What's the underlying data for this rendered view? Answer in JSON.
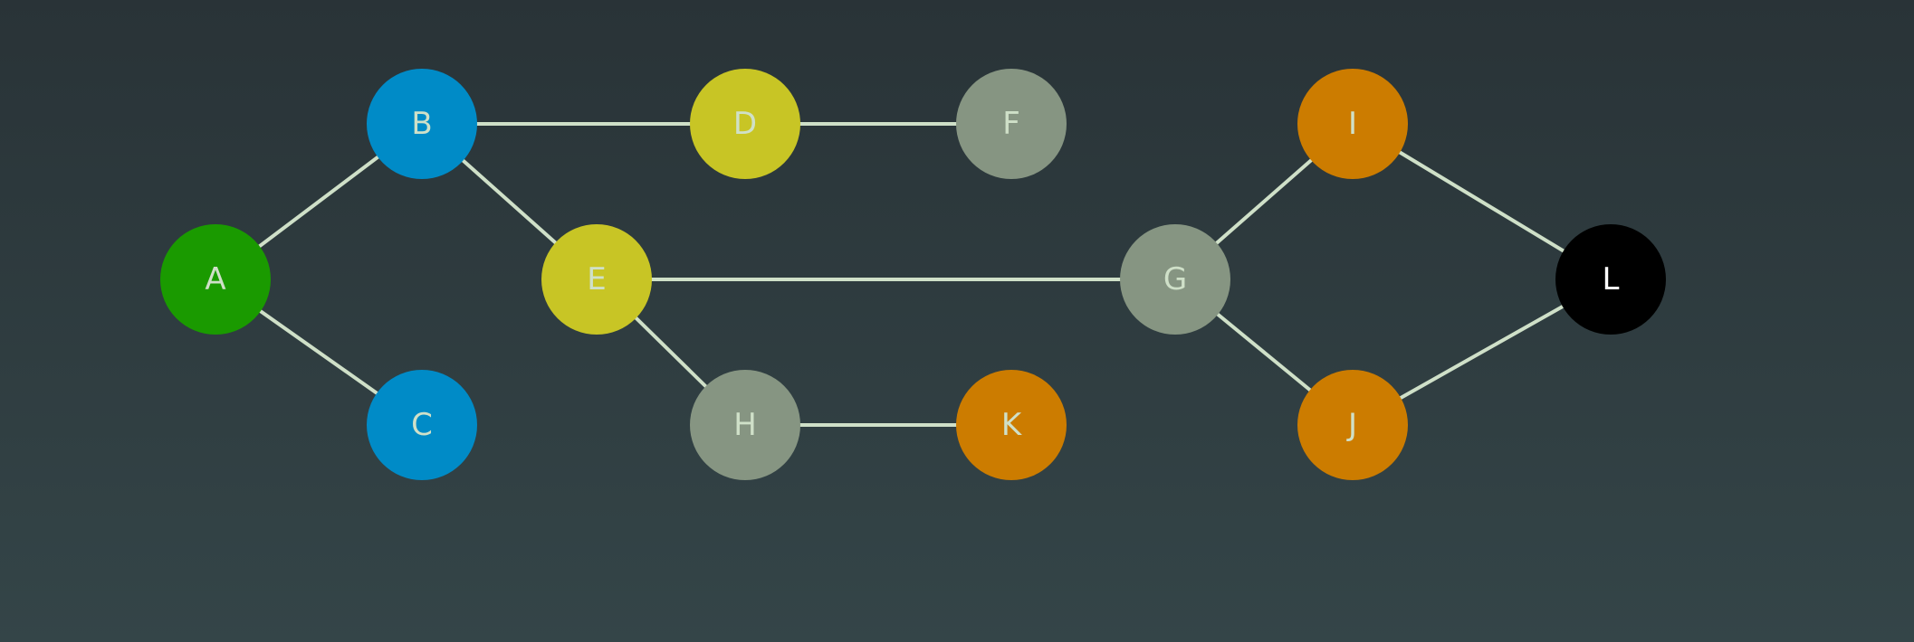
{
  "graph": {
    "edge_color": "#cfe0c8",
    "nodes": [
      {
        "id": "A",
        "label": "A",
        "fill": "#1a9a00",
        "text_color": "#cfe0c8"
      },
      {
        "id": "B",
        "label": "B",
        "fill": "#008bc7",
        "text_color": "#cfe0c8"
      },
      {
        "id": "C",
        "label": "C",
        "fill": "#008bc7",
        "text_color": "#cfe0c8"
      },
      {
        "id": "D",
        "label": "D",
        "fill": "#c8c525",
        "text_color": "#cfe0c8"
      },
      {
        "id": "E",
        "label": "E",
        "fill": "#c8c525",
        "text_color": "#cfe0c8"
      },
      {
        "id": "F",
        "label": "F",
        "fill": "#869582",
        "text_color": "#cfe0c8"
      },
      {
        "id": "G",
        "label": "G",
        "fill": "#869582",
        "text_color": "#cfe0c8"
      },
      {
        "id": "H",
        "label": "H",
        "fill": "#869582",
        "text_color": "#cfe0c8"
      },
      {
        "id": "I",
        "label": "I",
        "fill": "#cc7c00",
        "text_color": "#cfe0c8"
      },
      {
        "id": "J",
        "label": "J",
        "fill": "#cc7c00",
        "text_color": "#cfe0c8"
      },
      {
        "id": "K",
        "label": "K",
        "fill": "#cc7c00",
        "text_color": "#cfe0c8"
      },
      {
        "id": "L",
        "label": "L",
        "fill": "#000000",
        "text_color": "#ffffff"
      }
    ],
    "edges": [
      [
        "A",
        "B"
      ],
      [
        "A",
        "C"
      ],
      [
        "B",
        "D"
      ],
      [
        "B",
        "E"
      ],
      [
        "D",
        "F"
      ],
      [
        "E",
        "G"
      ],
      [
        "E",
        "H"
      ],
      [
        "H",
        "K"
      ],
      [
        "G",
        "I"
      ],
      [
        "G",
        "J"
      ],
      [
        "I",
        "L"
      ],
      [
        "J",
        "L"
      ]
    ]
  }
}
